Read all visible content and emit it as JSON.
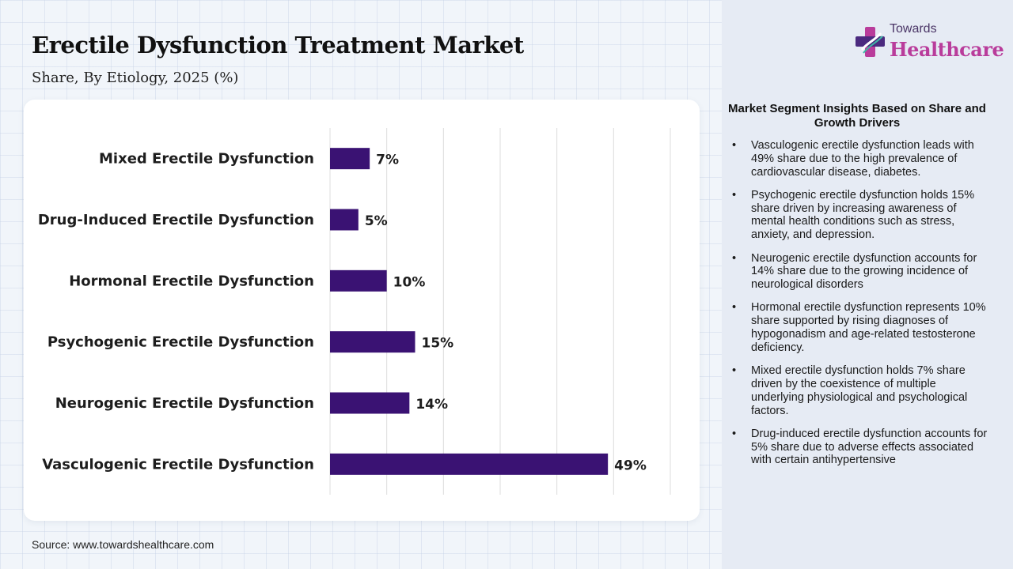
{
  "header": {
    "title": "Erectile Dysfunction Treatment Market",
    "subtitle": "Share, By Etiology, 2025 (%)"
  },
  "logo": {
    "line1": "Towards",
    "line2": "Healthcare"
  },
  "chart_data": {
    "type": "bar",
    "orientation": "horizontal",
    "categories": [
      "Mixed Erectile Dysfunction",
      "Drug-Induced Erectile Dysfunction",
      "Hormonal Erectile Dysfunction",
      "Psychogenic Erectile Dysfunction",
      "Neurogenic Erectile Dysfunction",
      "Vasculogenic Erectile Dysfunction"
    ],
    "values": [
      7,
      5,
      10,
      15,
      14,
      49
    ],
    "value_labels": [
      "7%",
      "5%",
      "10%",
      "15%",
      "14%",
      "49%"
    ],
    "xlim": [
      0,
      60
    ],
    "grid": true,
    "bar_color": "#3a1273"
  },
  "insights": {
    "title": "Market Segment Insights Based on Share and Growth Drivers",
    "bullet": "•",
    "items": [
      "Vasculogenic erectile dysfunction leads with 49% share due to the high prevalence of cardiovascular disease, diabetes.",
      "Psychogenic erectile dysfunction holds 15% share driven by increasing awareness of mental health conditions such as stress, anxiety, and depression.",
      "Neurogenic erectile dysfunction accounts for 14% share due to the growing incidence of neurological disorders",
      "Hormonal erectile dysfunction represents 10% share supported by rising diagnoses of hypogonadism and age-related testosterone deficiency.",
      "Mixed erectile dysfunction holds 7% share driven by the coexistence of multiple underlying physiological and psychological factors.",
      "Drug-induced erectile dysfunction accounts for 5% share due to adverse effects associated with certain antihypertensive"
    ]
  },
  "source": "Source: www.towardshealthcare.com"
}
